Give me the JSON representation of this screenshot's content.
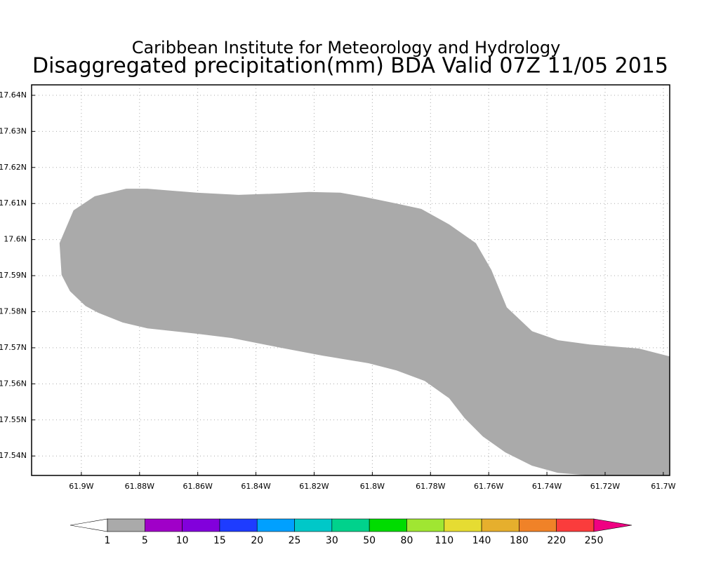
{
  "map": {
    "title": "Caribbean Institute for Meteorology and Hydrology",
    "subtitle": "Disaggregated precipitation(mm) BDA Valid 07Z 11/05 2015",
    "xlim": [
      -61.9171,
      -61.6978
    ],
    "ylim": [
      17.5346,
      17.6429
    ],
    "xticks": [
      {
        "value": -61.9,
        "label": "61.9W"
      },
      {
        "value": -61.88,
        "label": "61.88W"
      },
      {
        "value": -61.86,
        "label": "61.86W"
      },
      {
        "value": -61.84,
        "label": "61.84W"
      },
      {
        "value": -61.82,
        "label": "61.82W"
      },
      {
        "value": -61.8,
        "label": "61.8W"
      },
      {
        "value": -61.78,
        "label": "61.78W"
      },
      {
        "value": -61.76,
        "label": "61.76W"
      },
      {
        "value": -61.74,
        "label": "61.74W"
      },
      {
        "value": -61.72,
        "label": "61.72W"
      },
      {
        "value": -61.7,
        "label": "61.7W"
      }
    ],
    "yticks": [
      {
        "value": 17.54,
        "label": "17.54N"
      },
      {
        "value": 17.55,
        "label": "17.55N"
      },
      {
        "value": 17.56,
        "label": "17.56N"
      },
      {
        "value": 17.57,
        "label": "17.57N"
      },
      {
        "value": 17.58,
        "label": "17.58N"
      },
      {
        "value": 17.59,
        "label": "17.59N"
      },
      {
        "value": 17.6,
        "label": "17.6N"
      },
      {
        "value": 17.61,
        "label": "17.61N"
      },
      {
        "value": 17.62,
        "label": "17.62N"
      },
      {
        "value": 17.63,
        "label": "17.63N"
      },
      {
        "value": 17.64,
        "label": "17.64N"
      }
    ],
    "grid": true,
    "region": {
      "color": "#aaaaaa",
      "points": [
        [
          -61.9075,
          17.599
        ],
        [
          -61.9068,
          17.5902
        ],
        [
          -61.9039,
          17.5857
        ],
        [
          -61.8986,
          17.5816
        ],
        [
          -61.8942,
          17.5797
        ],
        [
          -61.8858,
          17.577
        ],
        [
          -61.8773,
          17.5754
        ],
        [
          -61.8604,
          17.5739
        ],
        [
          -61.8484,
          17.5727
        ],
        [
          -61.8315,
          17.57
        ],
        [
          -61.817,
          17.5678
        ],
        [
          -61.8013,
          17.5657
        ],
        [
          -61.7917,
          17.5637
        ],
        [
          -61.782,
          17.5608
        ],
        [
          -61.7736,
          17.556
        ],
        [
          -61.7683,
          17.5505
        ],
        [
          -61.762,
          17.5454
        ],
        [
          -61.7543,
          17.541
        ],
        [
          -61.7451,
          17.5373
        ],
        [
          -61.7362,
          17.5353
        ],
        [
          -61.7253,
          17.5346
        ],
        [
          -61.6978,
          17.5346
        ],
        [
          -61.6978,
          17.5676
        ],
        [
          -61.7084,
          17.5698
        ],
        [
          -61.7253,
          17.5709
        ],
        [
          -61.7362,
          17.5721
        ],
        [
          -61.7451,
          17.5746
        ],
        [
          -61.7538,
          17.5812
        ],
        [
          -61.7591,
          17.5916
        ],
        [
          -61.7644,
          17.599
        ],
        [
          -61.7736,
          17.6042
        ],
        [
          -61.7832,
          17.6085
        ],
        [
          -61.7917,
          17.61
        ],
        [
          -61.8025,
          17.6118
        ],
        [
          -61.811,
          17.613
        ],
        [
          -61.8218,
          17.6132
        ],
        [
          -61.8315,
          17.6128
        ],
        [
          -61.846,
          17.6124
        ],
        [
          -61.8604,
          17.613
        ],
        [
          -61.8773,
          17.6141
        ],
        [
          -61.8846,
          17.6141
        ],
        [
          -61.8954,
          17.612
        ],
        [
          -61.9027,
          17.6081
        ]
      ]
    },
    "colorbar": {
      "levels": [
        1,
        5,
        10,
        15,
        20,
        25,
        30,
        50,
        80,
        110,
        140,
        180,
        220,
        250
      ],
      "colors": [
        "#ffffff",
        "#aaaaaa",
        "#a000c8",
        "#8200dc",
        "#1e3cff",
        "#00a0ff",
        "#00c8c8",
        "#00d28c",
        "#00dc00",
        "#a0e632",
        "#e6dc32",
        "#e6af2d",
        "#f08228",
        "#fa3c3c",
        "#f00082"
      ]
    }
  }
}
